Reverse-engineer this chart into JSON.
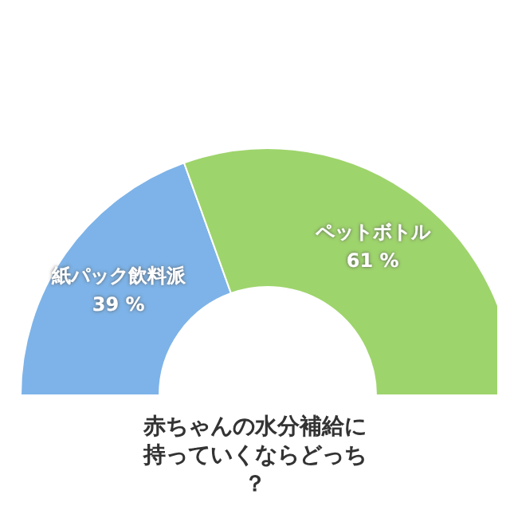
{
  "chart_data": {
    "type": "donut",
    "title": "赤ちゃんの水分補給に持っていくならどっち？",
    "categories": [
      "紙パック飲料派",
      "ペットボトル"
    ],
    "values": [
      39,
      61
    ],
    "value_labels": [
      "39 %",
      "61 %"
    ],
    "colors": [
      "#7db3e8",
      "#9ed46c"
    ],
    "legend": false
  }
}
